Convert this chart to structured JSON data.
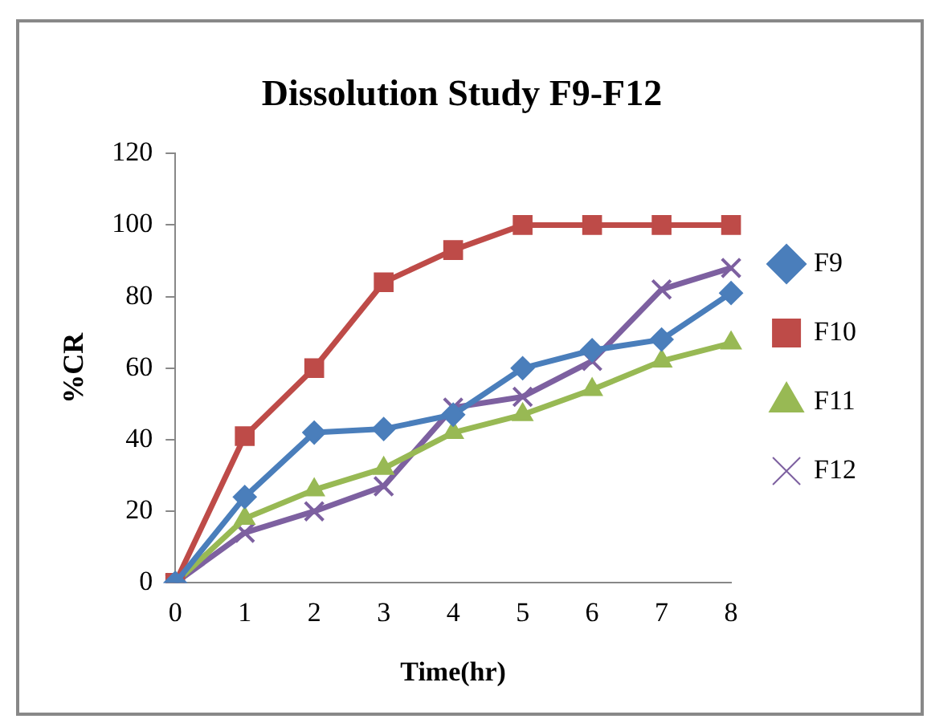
{
  "chart_data": {
    "type": "line",
    "title": "Dissolution Study F9-F12",
    "xlabel": "Time(hr)",
    "ylabel": "%CR",
    "categories": [
      "0",
      "1",
      "2",
      "3",
      "4",
      "5",
      "6",
      "7",
      "8"
    ],
    "series": [
      {
        "name": "F9",
        "color": "#4a7ebb",
        "marker": "diamond",
        "values": [
          0,
          24,
          42,
          43,
          47,
          60,
          65,
          68,
          81
        ]
      },
      {
        "name": "F10",
        "color": "#be4b48",
        "marker": "square",
        "values": [
          0,
          41,
          60,
          84,
          93,
          100,
          100,
          100,
          100
        ]
      },
      {
        "name": "F11",
        "color": "#98b954",
        "marker": "triangle",
        "values": [
          0,
          18,
          26,
          32,
          42,
          47,
          54,
          62,
          67
        ]
      },
      {
        "name": "F12",
        "color": "#7d60a0",
        "marker": "cross",
        "values": [
          0,
          14,
          20,
          27,
          49,
          52,
          62,
          82,
          88
        ]
      }
    ],
    "ylim": [
      0,
      120
    ],
    "yticks": [
      0,
      20,
      40,
      60,
      80,
      100,
      120
    ],
    "grid": false,
    "legend": "right",
    "line_style": "solid"
  }
}
